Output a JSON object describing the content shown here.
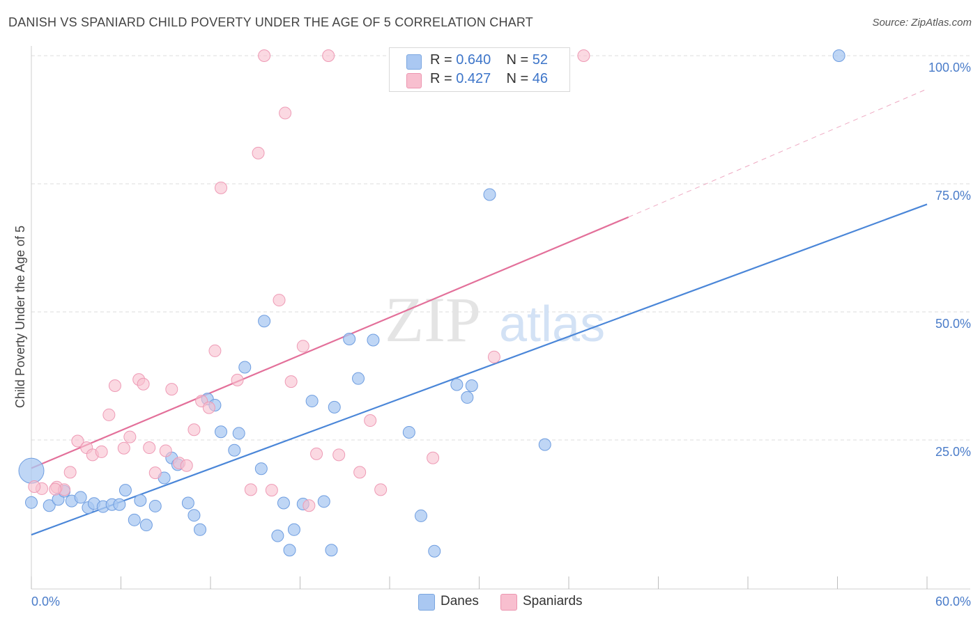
{
  "title": "DANISH VS SPANIARD CHILD POVERTY UNDER THE AGE OF 5 CORRELATION CHART",
  "source": "Source: ZipAtlas.com",
  "watermark": {
    "zip": "ZIP",
    "atlas": "atlas"
  },
  "legend": {
    "r_label": "R =",
    "n_label": "N =",
    "danes": {
      "r": "0.640",
      "n": "52",
      "color": "#aac8f2"
    },
    "spaniards": {
      "r": "0.427",
      "n": "46",
      "color": "#f8bfcf"
    }
  },
  "bottom_legend": {
    "danes": "Danes",
    "spaniards": "Spaniards"
  },
  "chart_data": {
    "type": "scatter",
    "xlabel": "",
    "ylabel": "Child Poverty Under the Age of 5",
    "xlim": [
      0,
      60
    ],
    "ylim": [
      0,
      100
    ],
    "x_tick_labels": [
      "0.0%",
      "60.0%"
    ],
    "y_ticks": [
      25,
      50,
      75,
      100
    ],
    "y_tick_labels": [
      "25.0%",
      "50.0%",
      "75.0%",
      "100.0%"
    ],
    "grid": true,
    "series": [
      {
        "name": "Danes",
        "color": "#4a86d8",
        "fill": "#aac8f2",
        "trend": {
          "x": [
            0,
            60
          ],
          "y": [
            6.5,
            71.0
          ]
        },
        "points": [
          [
            0.0,
            19.0,
            "big"
          ],
          [
            0.0,
            12.8
          ],
          [
            1.2,
            12.2
          ],
          [
            1.8,
            13.4
          ],
          [
            2.2,
            15.0
          ],
          [
            2.7,
            13.1
          ],
          [
            3.3,
            13.8
          ],
          [
            3.8,
            11.8
          ],
          [
            4.2,
            12.6
          ],
          [
            4.8,
            12.0
          ],
          [
            5.4,
            12.4
          ],
          [
            5.9,
            12.4
          ],
          [
            6.3,
            15.2
          ],
          [
            6.9,
            9.4
          ],
          [
            7.3,
            13.2
          ],
          [
            7.7,
            8.4
          ],
          [
            8.3,
            12.1
          ],
          [
            8.9,
            17.6
          ],
          [
            9.4,
            21.5
          ],
          [
            9.8,
            20.2
          ],
          [
            10.5,
            12.7
          ],
          [
            10.9,
            10.3
          ],
          [
            11.3,
            7.5
          ],
          [
            11.8,
            33.0
          ],
          [
            12.3,
            31.8
          ],
          [
            12.7,
            26.6
          ],
          [
            13.6,
            23.0
          ],
          [
            13.9,
            26.3
          ],
          [
            14.3,
            39.2
          ],
          [
            15.4,
            19.4
          ],
          [
            15.6,
            48.2
          ],
          [
            16.5,
            6.3
          ],
          [
            16.9,
            12.7
          ],
          [
            17.3,
            3.5
          ],
          [
            17.6,
            7.5
          ],
          [
            18.2,
            12.5
          ],
          [
            18.8,
            32.6
          ],
          [
            19.6,
            13.0
          ],
          [
            20.1,
            3.5
          ],
          [
            20.3,
            31.4
          ],
          [
            21.3,
            44.7
          ],
          [
            21.9,
            37.0
          ],
          [
            22.9,
            44.5
          ],
          [
            25.3,
            26.5
          ],
          [
            26.1,
            10.2
          ],
          [
            27.0,
            3.3
          ],
          [
            28.5,
            35.8
          ],
          [
            29.2,
            33.3
          ],
          [
            29.5,
            35.6
          ],
          [
            30.7,
            72.9
          ],
          [
            34.4,
            24.1
          ],
          [
            54.1,
            100.0
          ]
        ]
      },
      {
        "name": "Spaniards",
        "color": "#e3709a",
        "fill": "#f8bfcf",
        "trend": {
          "x": [
            0,
            40
          ],
          "y": [
            19.5,
            68.5
          ]
        },
        "trend_dashed": {
          "x": [
            40,
            60
          ],
          "y": [
            68.5,
            93.5
          ]
        },
        "points": [
          [
            0.7,
            15.5
          ],
          [
            1.7,
            15.8
          ],
          [
            2.2,
            15.3
          ],
          [
            2.6,
            18.7
          ],
          [
            3.1,
            24.8
          ],
          [
            3.7,
            23.5
          ],
          [
            4.1,
            22.1
          ],
          [
            4.7,
            22.7
          ],
          [
            5.2,
            29.9
          ],
          [
            5.6,
            35.6
          ],
          [
            6.2,
            23.4
          ],
          [
            6.6,
            25.6
          ],
          [
            7.2,
            36.8
          ],
          [
            7.5,
            35.9
          ],
          [
            7.9,
            23.5
          ],
          [
            8.3,
            18.6
          ],
          [
            9.0,
            22.9
          ],
          [
            9.4,
            34.9
          ],
          [
            9.9,
            20.5
          ],
          [
            10.4,
            20.0
          ],
          [
            10.9,
            27.0
          ],
          [
            11.4,
            32.6
          ],
          [
            11.9,
            31.3
          ],
          [
            12.3,
            42.4
          ],
          [
            13.8,
            36.7
          ],
          [
            14.7,
            15.3
          ],
          [
            15.2,
            81.0
          ],
          [
            15.6,
            100.0
          ],
          [
            16.1,
            15.2
          ],
          [
            16.6,
            52.3
          ],
          [
            17.0,
            88.8
          ],
          [
            17.4,
            36.4
          ],
          [
            18.2,
            43.3
          ],
          [
            18.6,
            12.2
          ],
          [
            19.1,
            22.3
          ],
          [
            19.9,
            100.0
          ],
          [
            20.6,
            22.1
          ],
          [
            22.0,
            18.7
          ],
          [
            22.7,
            28.8
          ],
          [
            23.4,
            15.3
          ],
          [
            26.9,
            21.5
          ],
          [
            31.0,
            41.2
          ],
          [
            37.0,
            100.0
          ],
          [
            12.7,
            74.2
          ],
          [
            1.6,
            15.4
          ],
          [
            0.2,
            15.9
          ]
        ]
      }
    ]
  }
}
